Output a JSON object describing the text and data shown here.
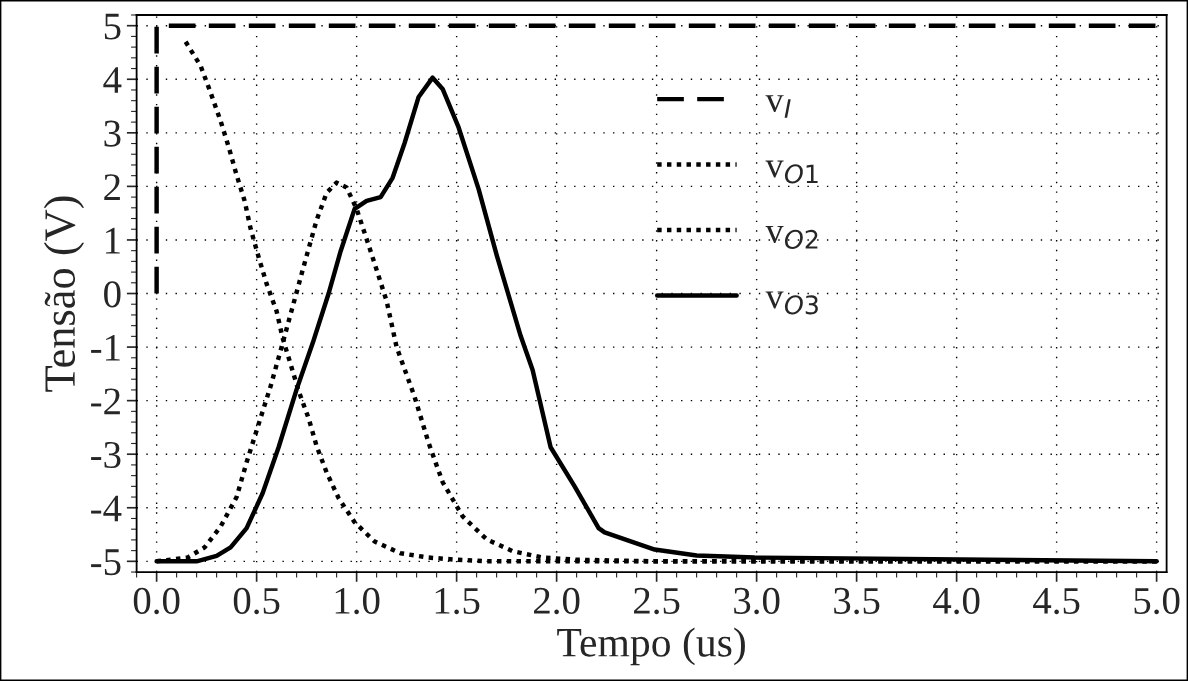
{
  "chart_data": {
    "type": "line",
    "xlabel": "Tempo (us)",
    "ylabel": "Tensão (V)",
    "xlim": [
      -0.1,
      5.05
    ],
    "ylim": [
      -5.2,
      5.2
    ],
    "xticks": [
      {
        "value": 0,
        "label": "0.0"
      },
      0.5,
      {
        "value": 1,
        "label": "1.0"
      },
      1.5,
      {
        "value": 2,
        "label": "2.0"
      },
      2.5,
      {
        "value": 3,
        "label": "3.0"
      },
      3.5,
      {
        "value": 4,
        "label": "4.0"
      },
      4.5,
      {
        "value": 5,
        "label": "5.0"
      }
    ],
    "yticks": [
      -5,
      -4,
      -3,
      -2,
      -1,
      0,
      1,
      2,
      3,
      4,
      5
    ],
    "grid": true,
    "legend": "top",
    "marker": "none",
    "series": [
      {
        "name": "v$_{I}$",
        "color": "#000000",
        "line_style": "dashed",
        "x": [
          0.0,
          0.0,
          5.0
        ],
        "values": [
          0,
          5,
          5
        ]
      },
      {
        "name": "v$_{O1}$",
        "color": "#000000",
        "line_style": "dotted",
        "x": [
          0.145,
          0.22,
          0.27,
          0.32,
          0.36,
          0.4,
          0.44,
          0.47,
          0.51,
          0.55,
          0.6,
          0.63,
          0.67,
          0.71,
          0.76,
          0.8,
          0.85,
          0.91,
          0.99,
          1.09,
          1.22,
          1.36,
          1.5,
          1.65,
          1.8,
          5.0
        ],
        "values": [
          4.7,
          4.25,
          3.75,
          3.22,
          2.74,
          2.21,
          1.73,
          1.21,
          0.68,
          0.18,
          -0.33,
          -0.83,
          -1.32,
          -1.82,
          -2.33,
          -2.85,
          -3.34,
          -3.82,
          -4.27,
          -4.63,
          -4.85,
          -4.93,
          -4.97,
          -5.0,
          -5.0,
          -5.0
        ]
      },
      {
        "name": "v$_{O2}$",
        "color": "#000000",
        "line_style": "dotted",
        "x": [
          0.0,
          0.155,
          0.24,
          0.32,
          0.4,
          0.45,
          0.51,
          0.57,
          0.63,
          0.74,
          0.8,
          0.85,
          0.9,
          0.95,
          1.0,
          1.07,
          1.15,
          1.2,
          1.29,
          1.36,
          1.43,
          1.53,
          1.65,
          1.78,
          1.93,
          2.1,
          2.5,
          5.0
        ],
        "values": [
          -5.0,
          -4.93,
          -4.74,
          -4.35,
          -3.8,
          -3.15,
          -2.44,
          -1.73,
          -0.93,
          0.57,
          1.37,
          1.88,
          2.07,
          1.98,
          1.58,
          0.79,
          -0.14,
          -1.0,
          -1.93,
          -2.79,
          -3.52,
          -4.16,
          -4.59,
          -4.81,
          -4.93,
          -4.97,
          -5.0,
          -5.0
        ]
      },
      {
        "name": "v$_{O3}$",
        "color": "#000000",
        "line_style": "solid",
        "x": [
          0.0,
          0.2,
          0.3,
          0.37,
          0.45,
          0.53,
          0.61,
          0.7,
          0.78,
          0.86,
          0.92,
          0.99,
          1.05,
          1.12,
          1.18,
          1.24,
          1.31,
          1.38,
          1.43,
          1.51,
          1.61,
          1.7,
          1.82,
          1.88,
          1.97,
          2.09,
          2.21,
          2.24,
          2.49,
          2.7,
          2.99,
          5.0
        ],
        "values": [
          -5.0,
          -5.0,
          -4.9,
          -4.74,
          -4.38,
          -3.73,
          -2.87,
          -1.79,
          -0.93,
          0.0,
          0.79,
          1.58,
          1.73,
          1.8,
          2.16,
          2.81,
          3.67,
          4.03,
          3.82,
          3.1,
          1.95,
          0.72,
          -0.79,
          -1.43,
          -2.87,
          -3.6,
          -4.38,
          -4.46,
          -4.78,
          -4.89,
          -4.93,
          -5.0
        ]
      }
    ]
  }
}
